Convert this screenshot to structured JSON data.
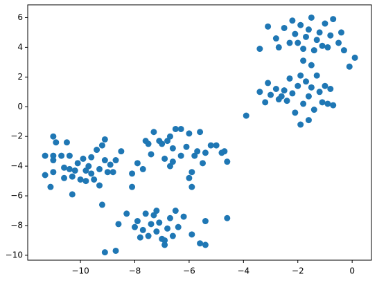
{
  "chart_data": {
    "type": "scatter",
    "series": [
      {
        "color": "#1f77b4",
        "x": [
          -11.3,
          -11.3,
          -11.1,
          -11,
          -10.9,
          -11,
          -11,
          -11,
          -10.7,
          -10.6,
          -10.5,
          -10.4,
          -10.4,
          -10.3,
          -10.3,
          -10.1,
          -10,
          -9.9,
          -9.8,
          -9.7,
          -9.6,
          -9.5,
          -9.4,
          -9.3,
          -9.3,
          -9.2,
          -9.1,
          -9,
          -9.1,
          -8.9,
          -8.8,
          -8.7,
          -8.5,
          -9.2,
          -10.2,
          -9.8,
          -9.6,
          -10.6,
          -8.1,
          -8.1,
          -7.9,
          -7.7,
          -7.6,
          -7.5,
          -7.4,
          -7.3,
          -7.1,
          -7,
          -6.9,
          -6.8,
          -6.7,
          -6.6,
          -6.6,
          -6.5,
          -6.3,
          -6.3,
          -6.1,
          -6,
          -5.9,
          -5.8,
          -5.7,
          -5.6,
          -5.5,
          -5.4,
          -5.2,
          -5,
          -4.8,
          -4.7,
          -4.6,
          -6,
          -5.9,
          -6.7,
          -9.1,
          -8.7,
          -8.6,
          -8.3,
          -8,
          -7.9,
          -7.8,
          -7.7,
          -7.6,
          -7.5,
          -7.4,
          -7.3,
          -7.2,
          -7.1,
          -7,
          -6.9,
          -6.8,
          -6.7,
          -6.6,
          -6.5,
          -6.4,
          -6.2,
          -5.9,
          -5.6,
          -5.4,
          -5.4,
          -4.6,
          -7.2,
          -6.9,
          -3.9,
          -3.4,
          -3.2,
          -3.1,
          -3,
          -2.8,
          -2.7,
          -2.5,
          -2.4,
          -2.3,
          -2.2,
          -2.1,
          -2,
          -1.9,
          -1.9,
          -1.8,
          -1.7,
          -1.6,
          -1.5,
          -1.4,
          -1.3,
          -1.2,
          -1.1,
          -1,
          -0.9,
          -0.8,
          -0.7,
          -1.6,
          -2.6,
          -3.4,
          -3.1,
          -2.8,
          -2.7,
          -2.5,
          -2.3,
          -2.2,
          -2.1,
          -2,
          -1.9,
          -1.8,
          -1.7,
          -1.6,
          -1.5,
          -1.4,
          -1.3,
          -1.2,
          -1.1,
          -1,
          -0.9,
          -0.8,
          -0.7,
          -0.5,
          -0.4,
          -0.3,
          -0.1,
          0.1,
          -1.5,
          -1.8
        ],
        "values": [
          -3.3,
          -4.6,
          -5.4,
          -2,
          -2.4,
          -3.3,
          -3.6,
          -4.4,
          -3.3,
          -4.1,
          -2.4,
          -3.3,
          -4.2,
          -4.7,
          -5.9,
          -3.8,
          -4.9,
          -3.5,
          -4.3,
          -4,
          -3.4,
          -4.9,
          -2.9,
          -4.2,
          -5.3,
          -2.6,
          -3.6,
          -4.4,
          -2.2,
          -3.9,
          -4.4,
          -3.6,
          -3,
          -6.6,
          -4.3,
          -5,
          -4.5,
          -4.8,
          -4.5,
          -5.4,
          -3.8,
          -4.2,
          -2.3,
          -2.5,
          -3.2,
          -1.7,
          -2.3,
          -2.5,
          -3.5,
          -2.3,
          -2,
          -2.8,
          -3.7,
          -1.5,
          -1.5,
          -3.3,
          -2.7,
          -1.8,
          -4.4,
          -3.3,
          -3,
          -1.7,
          -3.8,
          -3.1,
          -2.6,
          -2.6,
          -3.1,
          -3,
          -3.7,
          -4.8,
          -5.4,
          -4,
          -9.8,
          -9.7,
          -7.9,
          -7.2,
          -8.1,
          -7.7,
          -8.8,
          -8.3,
          -7.2,
          -8.7,
          -7.9,
          -7.3,
          -8.4,
          -7.8,
          -8.9,
          -9.3,
          -8.2,
          -7.5,
          -8.7,
          -7,
          -8.1,
          -7.4,
          -8.6,
          -9.2,
          -9.3,
          -7.7,
          -7.5,
          -7,
          -9,
          -0.6,
          1,
          0.3,
          1.6,
          0.8,
          1.2,
          0.5,
          1.1,
          0.4,
          1.9,
          0.9,
          -0.4,
          1.4,
          -1.2,
          2.1,
          0.2,
          1.7,
          0.7,
          1.3,
          -0.2,
          2.1,
          1,
          0.3,
          1.4,
          0.2,
          1.2,
          0.1,
          -0.9,
          0.7,
          3.9,
          5.4,
          4.6,
          4,
          5.3,
          4.3,
          5.8,
          4.9,
          4.3,
          5.5,
          3.9,
          4.7,
          5.2,
          6,
          3.8,
          4.5,
          5,
          4.1,
          5.6,
          4,
          4.8,
          5.9,
          4.3,
          5,
          3.8,
          2.7,
          3.3,
          2.8,
          3.1
        ]
      }
    ],
    "xlim": [
      -11.94,
      0.71
    ],
    "ylim": [
      -10.33,
      6.86
    ],
    "xticks": [
      {
        "value": -10,
        "label": "−10"
      },
      {
        "value": -8,
        "label": "−8"
      },
      {
        "value": -6,
        "label": "−6"
      },
      {
        "value": -4,
        "label": "−4"
      },
      {
        "value": -2,
        "label": "−2"
      },
      0
    ],
    "yticks": [
      {
        "value": -10,
        "label": "−10"
      },
      {
        "value": -8,
        "label": "−8"
      },
      {
        "value": -6,
        "label": "−6"
      },
      {
        "value": -4,
        "label": "−4"
      },
      {
        "value": -2,
        "label": "−2"
      },
      0,
      2,
      4,
      6
    ]
  }
}
